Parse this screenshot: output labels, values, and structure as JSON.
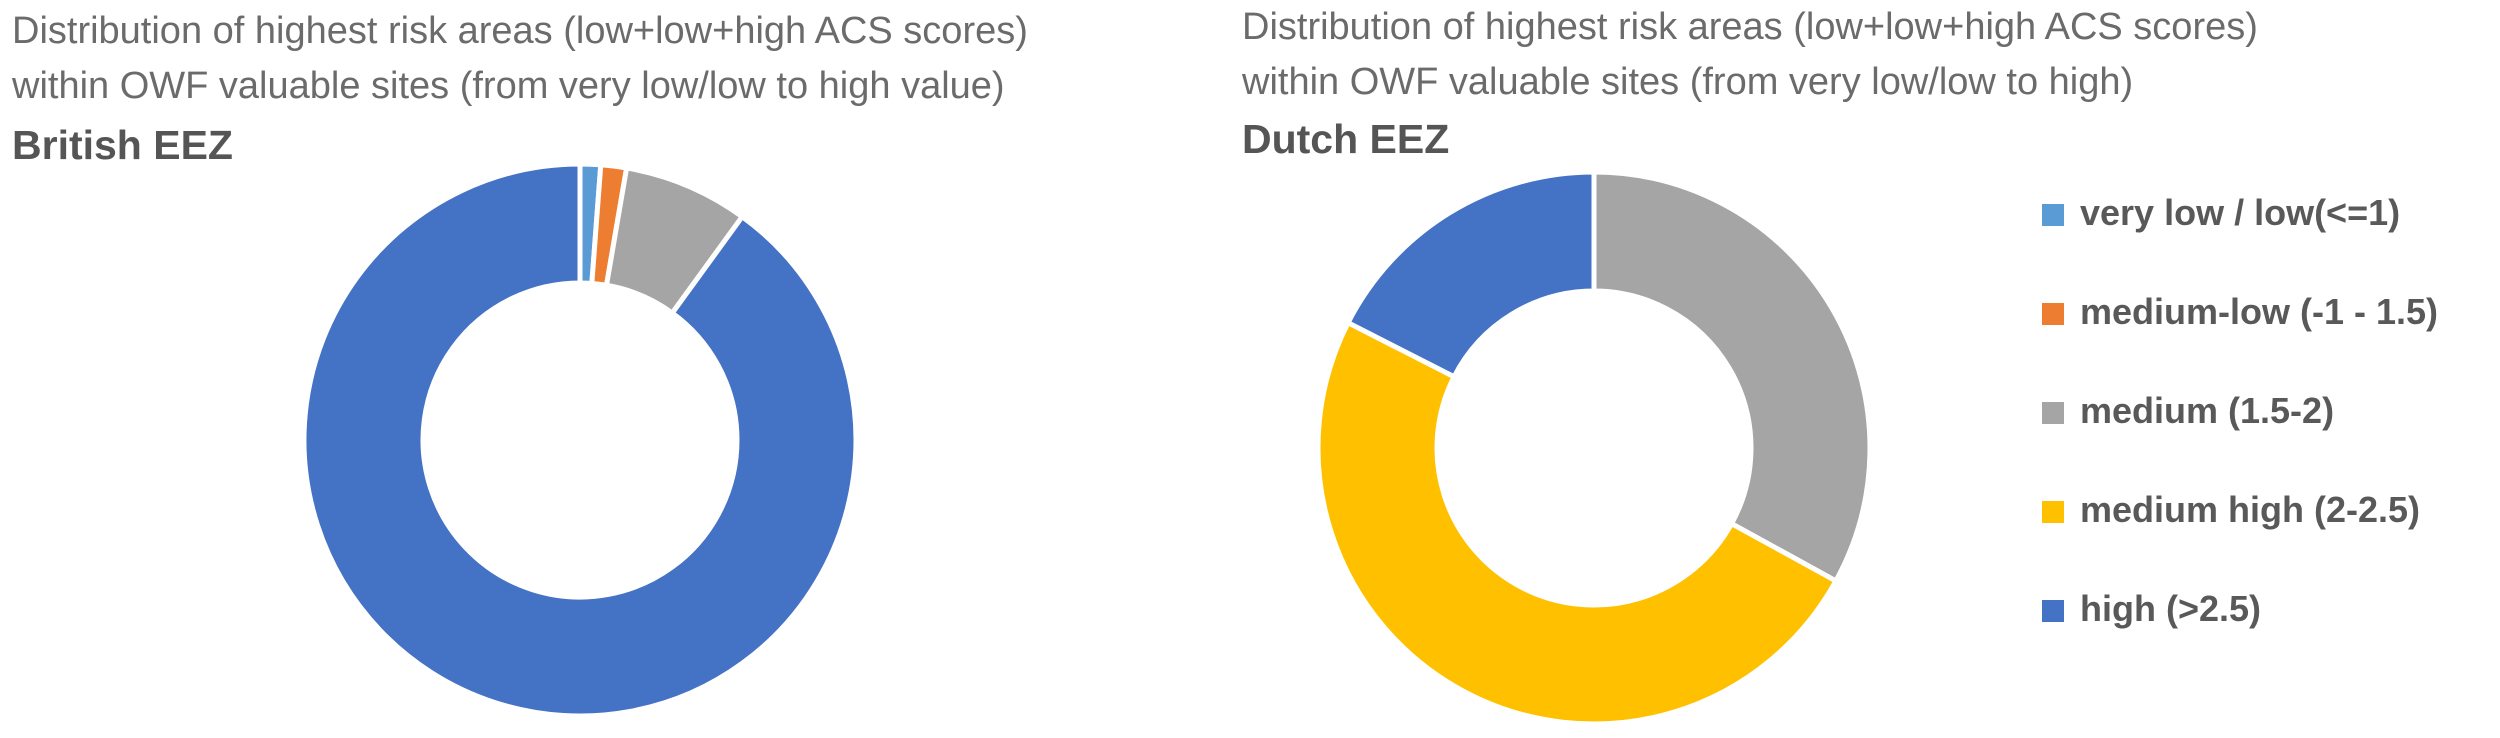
{
  "chart_data": [
    {
      "type": "pie",
      "title_lines": [
        "Distribution of highest risk areas (low+low+high ACS scores)",
        "within OWF valuable sites (from very low/low to high value)"
      ],
      "subtitle": "British EEZ",
      "categories": [
        "very low / low(<=1)",
        "medium-low (-1 - 1.5)",
        "medium (1.5-2)",
        "medium high (2-2.5)",
        "high (>2.5)"
      ],
      "values": [
        1.2,
        1.5,
        7.3,
        0,
        90.0
      ],
      "colors": [
        "#5b9bd5",
        "#ed7d31",
        "#a5a5a5",
        "#ffc000",
        "#4472c4"
      ]
    },
    {
      "type": "pie",
      "title_lines": [
        "Distribution of highest risk areas (low+low+high ACS scores)",
        "within OWF valuable sites (from very low/low to high)"
      ],
      "subtitle": "Dutch EEZ",
      "categories": [
        "very low / low(<=1)",
        "medium-low (-1 - 1.5)",
        "medium (1.5-2)",
        "medium high (2-2.5)",
        "high (>2.5)"
      ],
      "values": [
        0,
        0,
        33.0,
        49.5,
        17.5
      ],
      "colors": [
        "#5b9bd5",
        "#ed7d31",
        "#a5a5a5",
        "#ffc000",
        "#4472c4"
      ]
    }
  ],
  "legend": {
    "placement": "right",
    "items": [
      {
        "label": "very low / low(<=1)",
        "color": "#5b9bd5"
      },
      {
        "label": "medium-low (-1 - 1.5)",
        "color": "#ed7d31"
      },
      {
        "label": "medium (1.5-2)",
        "color": "#a5a5a5"
      },
      {
        "label": "medium high (2-2.5)",
        "color": "#ffc000"
      },
      {
        "label": "high (>2.5)",
        "color": "#4472c4"
      }
    ]
  }
}
